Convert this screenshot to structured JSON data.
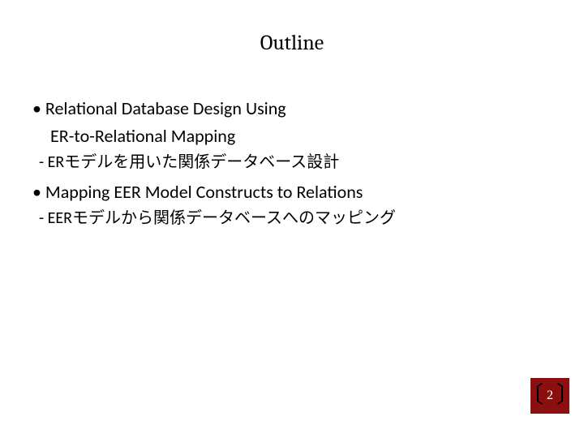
{
  "slide": {
    "title": "Outline",
    "title_fontsize": 26,
    "body_fontsize": 22,
    "sub_fontsize": 20,
    "text_color": "#000000",
    "background_color": "#ffffff",
    "badge_background": "#8b0f0f",
    "badge_bracket_color": "#000000",
    "badge_number_color": "#ffffff",
    "items": [
      {
        "bullet": "• Relational Database Design Using",
        "cont": "ER-to-Relational Mapping",
        "sub": "- ERモデルを用いた関係データベース設計"
      },
      {
        "bullet": "• Mapping EER Model Constructs to Relations",
        "cont": null,
        "sub": "- EERモデルから関係データベースへのマッピング"
      }
    ],
    "page_number": "2",
    "bracket_left": "〔",
    "bracket_right": "〕"
  }
}
